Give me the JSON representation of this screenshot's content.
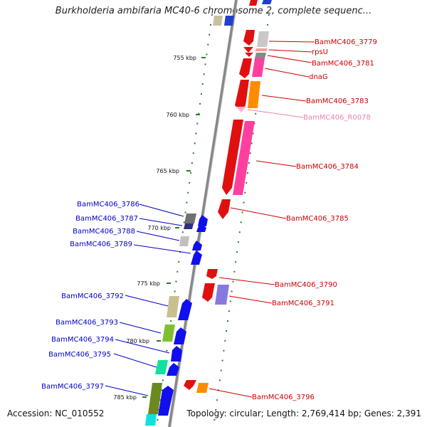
{
  "title": "Burkholderia ambifaria MC40-6 chromosome 2, complete sequenc...",
  "accession": "Accession: NC_010552",
  "topology": "Topology: circular; Length: 2,769,414 bp; Genes: 2,391",
  "ticks": [
    "755 kbp",
    "760 kbp",
    "765 kbp",
    "770 kbp",
    "775 kbp",
    "780 kbp",
    "785 kbp"
  ],
  "colors": {
    "forward_label": "#cc0000",
    "reverse_label": "#0000cc",
    "rna_label": "#f080b0",
    "backbone": "#888888",
    "tick_mark": "#2a7a2a"
  },
  "forward_genes": [
    {
      "label": "BamMC406_3779"
    },
    {
      "label": "rpsU"
    },
    {
      "label": "BamMC406_3781"
    },
    {
      "label": "dnaG"
    },
    {
      "label": "BamMC406_3783"
    },
    {
      "label": "BamMC406_R0078"
    },
    {
      "label": "BamMC406_3784"
    },
    {
      "label": "BamMC406_3785"
    },
    {
      "label": "BamMC406_3790"
    },
    {
      "label": "BamMC406_3791"
    },
    {
      "label": "BamMC406_3796"
    }
  ],
  "reverse_genes": [
    {
      "label": "BamMC406_3786"
    },
    {
      "label": "BamMC406_3787"
    },
    {
      "label": "BamMC406_3788"
    },
    {
      "label": "BamMC406_3789"
    },
    {
      "label": "BamMC406_3792"
    },
    {
      "label": "BamMC406_3793"
    },
    {
      "label": "BamMC406_3794"
    },
    {
      "label": "BamMC406_3795"
    },
    {
      "label": "BamMC406_3797"
    }
  ]
}
